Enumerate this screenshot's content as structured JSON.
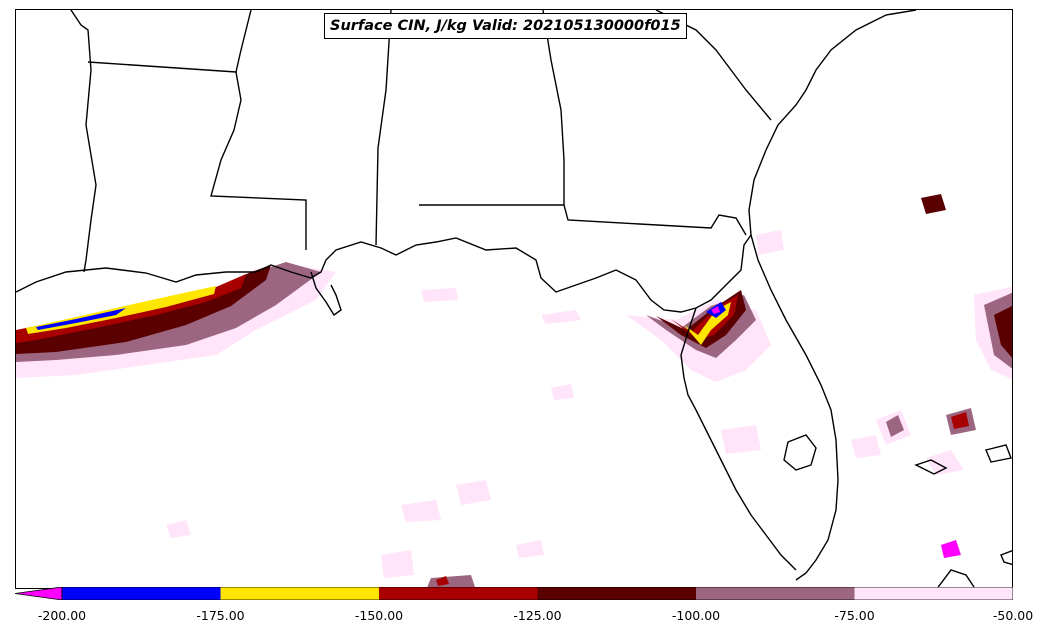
{
  "title": "Surface CIN, J/kg Valid: 202105130000f015",
  "colorbar": {
    "extend": "min",
    "extension_color": "#ff00ff",
    "bins": [
      {
        "from": -200,
        "to": -175,
        "color": "#0000ff"
      },
      {
        "from": -175,
        "to": -150,
        "color": "#ffe600"
      },
      {
        "from": -150,
        "to": -125,
        "color": "#a80000"
      },
      {
        "from": -125,
        "to": -100,
        "color": "#5a0000"
      },
      {
        "from": -100,
        "to": -75,
        "color": "#9c6680"
      },
      {
        "from": -75,
        "to": -50,
        "color": "#ffe4fa"
      }
    ],
    "tick_labels": [
      "-200.00",
      "-175.00",
      "-150.00",
      "-125.00",
      "-100.00",
      "-75.00",
      "-50.00"
    ]
  }
}
